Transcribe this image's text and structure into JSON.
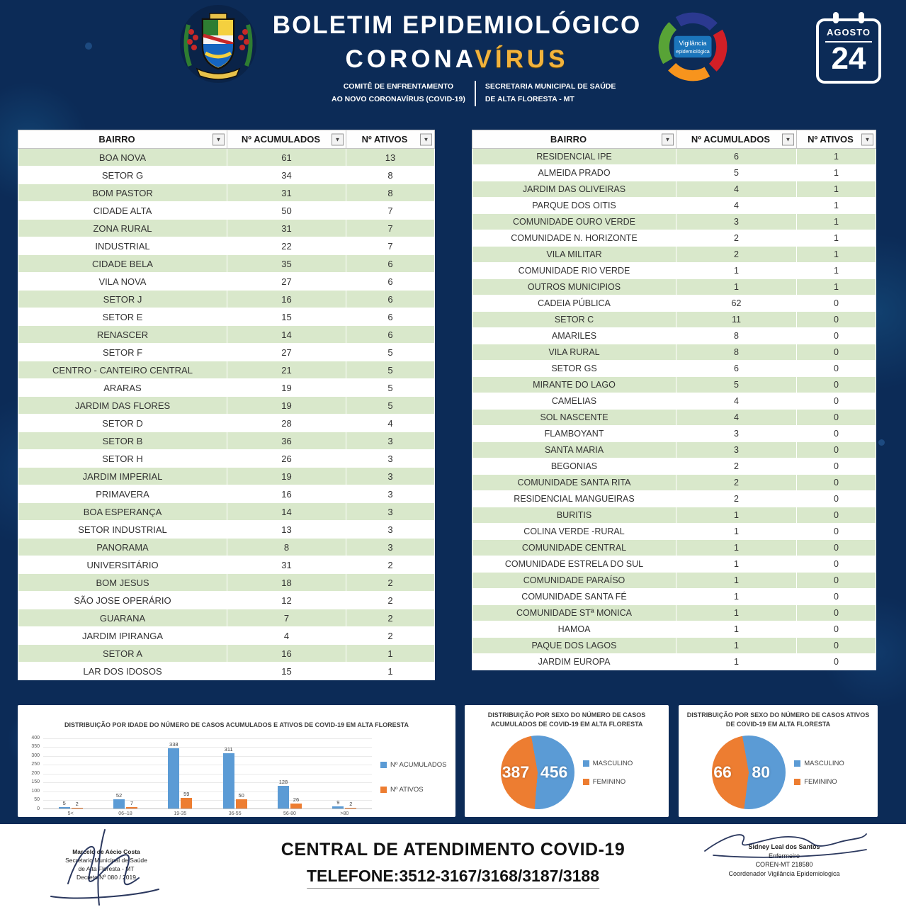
{
  "header": {
    "title_line1": "BOLETIM EPIDEMIOLÓGICO",
    "title_line2_white": "CORONA",
    "title_line2_gold": "VÍRUS",
    "committee_line1": "COMITÊ DE ENFRENTAMENTO",
    "committee_line2": "AO NOVO CORONAVÍRUS (COVID-19)",
    "secretariat_line1": "SECRETARIA MUNICIPAL DE SAÚDE",
    "secretariat_line2": "DE ALTA FLORESTA - MT",
    "badge_line1": "Vigilância",
    "badge_line2": "epidemiológica",
    "calendar_month": "AGOSTO",
    "calendar_day": "24"
  },
  "icons": {
    "filter": "▼"
  },
  "table": {
    "columns": [
      "BAIRRO",
      "Nº ACUMULADOS",
      "Nº ATIVOS"
    ],
    "left_rows": [
      [
        "BOA NOVA",
        "61",
        "13"
      ],
      [
        "SETOR G",
        "34",
        "8"
      ],
      [
        "BOM PASTOR",
        "31",
        "8"
      ],
      [
        "CIDADE ALTA",
        "50",
        "7"
      ],
      [
        "ZONA RURAL",
        "31",
        "7"
      ],
      [
        "INDUSTRIAL",
        "22",
        "7"
      ],
      [
        "CIDADE BELA",
        "35",
        "6"
      ],
      [
        "VILA NOVA",
        "27",
        "6"
      ],
      [
        "SETOR J",
        "16",
        "6"
      ],
      [
        "SETOR E",
        "15",
        "6"
      ],
      [
        "RENASCER",
        "14",
        "6"
      ],
      [
        "SETOR F",
        "27",
        "5"
      ],
      [
        "CENTRO - CANTEIRO CENTRAL",
        "21",
        "5"
      ],
      [
        "ARARAS",
        "19",
        "5"
      ],
      [
        "JARDIM DAS FLORES",
        "19",
        "5"
      ],
      [
        "SETOR D",
        "28",
        "4"
      ],
      [
        "SETOR B",
        "36",
        "3"
      ],
      [
        "SETOR H",
        "26",
        "3"
      ],
      [
        "JARDIM IMPERIAL",
        "19",
        "3"
      ],
      [
        "PRIMAVERA",
        "16",
        "3"
      ],
      [
        "BOA ESPERANÇA",
        "14",
        "3"
      ],
      [
        "SETOR INDUSTRIAL",
        "13",
        "3"
      ],
      [
        "PANORAMA",
        "8",
        "3"
      ],
      [
        "UNIVERSITÁRIO",
        "31",
        "2"
      ],
      [
        "BOM JESUS",
        "18",
        "2"
      ],
      [
        "SÃO JOSE OPERÁRIO",
        "12",
        "2"
      ],
      [
        "GUARANA",
        "7",
        "2"
      ],
      [
        "JARDIM IPIRANGA",
        "4",
        "2"
      ],
      [
        "SETOR A",
        "16",
        "1"
      ],
      [
        "LAR DOS IDOSOS",
        "15",
        "1"
      ]
    ],
    "right_rows": [
      [
        "RESIDENCIAL IPE",
        "6",
        "1"
      ],
      [
        "ALMEIDA PRADO",
        "5",
        "1"
      ],
      [
        "JARDIM DAS OLIVEIRAS",
        "4",
        "1"
      ],
      [
        "PARQUE DOS OITIS",
        "4",
        "1"
      ],
      [
        "COMUNIDADE OURO VERDE",
        "3",
        "1"
      ],
      [
        "COMUNIDADE N. HORIZONTE",
        "2",
        "1"
      ],
      [
        "VILA MILITAR",
        "2",
        "1"
      ],
      [
        "COMUNIDADE RIO VERDE",
        "1",
        "1"
      ],
      [
        "OUTROS MUNICIPIOS",
        "1",
        "1"
      ],
      [
        "CADEIA PÚBLICA",
        "62",
        "0"
      ],
      [
        "SETOR C",
        "11",
        "0"
      ],
      [
        "AMARILES",
        "8",
        "0"
      ],
      [
        "VILA RURAL",
        "8",
        "0"
      ],
      [
        "SETOR GS",
        "6",
        "0"
      ],
      [
        "MIRANTE DO LAGO",
        "5",
        "0"
      ],
      [
        "CAMELIAS",
        "4",
        "0"
      ],
      [
        "SOL NASCENTE",
        "4",
        "0"
      ],
      [
        "FLAMBOYANT",
        "3",
        "0"
      ],
      [
        "SANTA MARIA",
        "3",
        "0"
      ],
      [
        "BEGONIAS",
        "2",
        "0"
      ],
      [
        "COMUNIDADE SANTA RITA",
        "2",
        "0"
      ],
      [
        "RESIDENCIAL MANGUEIRAS",
        "2",
        "0"
      ],
      [
        "BURITIS",
        "1",
        "0"
      ],
      [
        "COLINA VERDE -RURAL",
        "1",
        "0"
      ],
      [
        "COMUNIDADE CENTRAL",
        "1",
        "0"
      ],
      [
        "COMUNIDADE ESTRELA DO SUL",
        "1",
        "0"
      ],
      [
        "COMUNIDADE PARAÍSO",
        "1",
        "0"
      ],
      [
        "COMUNIDADE SANTA FÉ",
        "1",
        "0"
      ],
      [
        "COMUNIDADE STª MONICA",
        "1",
        "0"
      ],
      [
        "HAMOA",
        "1",
        "0"
      ],
      [
        "PAQUE DOS LAGOS",
        "1",
        "0"
      ],
      [
        "JARDIM EUROPA",
        "1",
        "0"
      ]
    ]
  },
  "chart_data": [
    {
      "type": "bar",
      "title": "DISTRIBUIÇÃO POR IDADE DO NÚMERO DE CASOS ACUMULADOS E ATIVOS DE COVID-19 EM ALTA FLORESTA",
      "categories": [
        "5<",
        "06–18",
        "19-35",
        "36-55",
        "56-80",
        ">80"
      ],
      "series": [
        {
          "name": "Nº ACUMULADOS",
          "color": "#5b9bd5",
          "values": [
            5,
            52,
            338,
            311,
            128,
            9
          ]
        },
        {
          "name": "Nº ATIVOS",
          "color": "#ed7d31",
          "values": [
            2,
            7,
            59,
            50,
            26,
            2
          ]
        }
      ],
      "xlabel": "",
      "ylabel": "",
      "ylim": [
        0,
        400
      ],
      "yticks": [
        0,
        50,
        100,
        150,
        200,
        250,
        300,
        350,
        400
      ],
      "grid": true,
      "legend_position": "right"
    },
    {
      "type": "pie",
      "title": "DISTRIBUIÇÃO POR SEXO DO NÚMERO DE CASOS ACUMULADOS DE COVID-19 EM ALTA FLORESTA",
      "labels": [
        "MASCULINO",
        "FEMININO"
      ],
      "values": [
        456,
        387
      ],
      "colors": [
        "#5b9bd5",
        "#ed7d31"
      ],
      "legend_position": "right"
    },
    {
      "type": "pie",
      "title": "DISTRIBUIÇÃO POR SEXO DO NÚMERO DE CASOS ATIVOS DE COVID-19 EM ALTA FLORESTA",
      "labels": [
        "MASCULINO",
        "FEMININO"
      ],
      "values": [
        80,
        66
      ],
      "colors": [
        "#5b9bd5",
        "#ed7d31"
      ],
      "legend_position": "right"
    }
  ],
  "footer": {
    "hotline_title": "CENTRAL DE ATENDIMENTO COVID-19",
    "hotline_phone": "TELEFONE:3512-3167/3168/3187/3188",
    "left_signature": {
      "name": "Marcelo de Aécio Costa",
      "line2": "Secretario Municipal de Saúde",
      "line3": "de Alta Floresta - MT",
      "line4": "Decreto Nº 080 / 2019"
    },
    "right_signature": {
      "name": "Sidney Leal dos Santos",
      "line2": "Enfermeiro",
      "line3": "COREN-MT 218580",
      "line4": "Coordenador Vigilância Epidemiologica"
    }
  },
  "colors": {
    "background_navy": "#0c2b57",
    "title_gold": "#f2b33c",
    "row_green": "#d9e8cb",
    "accumulated_blue": "#5b9bd5",
    "active_orange": "#ed7d31"
  }
}
